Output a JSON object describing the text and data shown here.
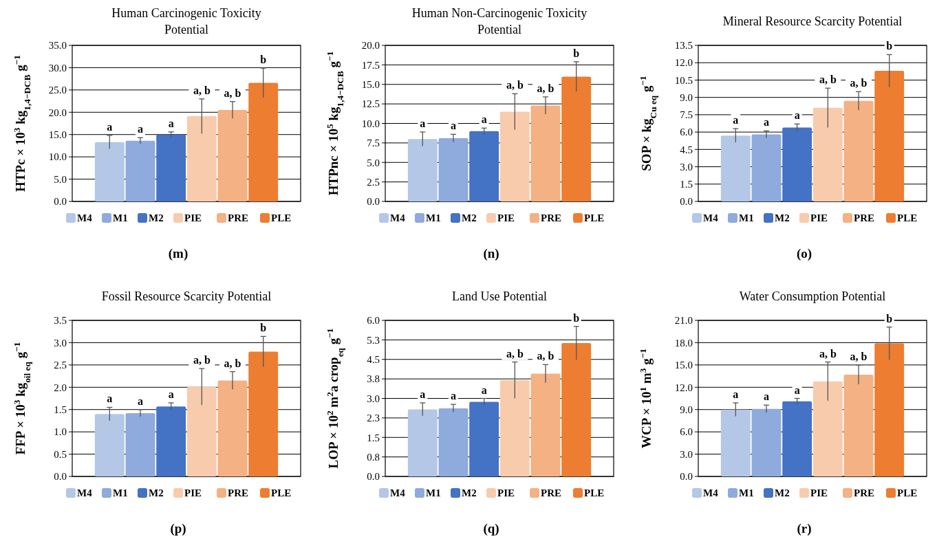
{
  "chart_data": [
    {
      "type": "bar",
      "title": "Human Carcinogenic Toxicity Potential",
      "ylabel": "HTPc × 10$^{3}$ kg$_{1,4−DCB}$ g$^{−1}$",
      "categories": [
        null
      ],
      "ylim": [
        0,
        35
      ],
      "yticks": [
        {
          "value": 0,
          "label": "0.0"
        },
        {
          "value": 5,
          "label": "5.0"
        },
        {
          "value": 10,
          "label": "10.0"
        },
        {
          "value": 15,
          "label": "15.0"
        },
        {
          "value": 20,
          "label": "20.0"
        },
        {
          "value": 25,
          "label": "25.0"
        },
        {
          "value": 30,
          "label": "30.0"
        },
        {
          "value": 35,
          "label": "35.0"
        }
      ],
      "grid": "y",
      "legend": "bottom",
      "series": [
        {
          "name": "M4",
          "color": "#b4c7e7",
          "values": [
            13.3
          ],
          "errors": [
            1.5
          ]
        },
        {
          "name": "M1",
          "color": "#8faadc",
          "values": [
            13.6
          ],
          "errors": [
            0.7
          ]
        },
        {
          "name": "M2",
          "color": "#4472c4",
          "values": [
            15.0
          ],
          "errors": [
            0.6
          ]
        },
        {
          "name": "PIE",
          "color": "#f8cbad",
          "values": [
            19.1
          ],
          "errors": [
            3.9
          ]
        },
        {
          "name": "PRE",
          "color": "#f4b183",
          "values": [
            20.5
          ],
          "errors": [
            1.9
          ]
        },
        {
          "name": "PLE",
          "color": "#ed7d31",
          "values": [
            26.6
          ],
          "errors": [
            3.3
          ]
        }
      ],
      "annotations": [
        {
          "text": "a",
          "y": 14.8
        },
        {
          "text": "a",
          "y": 14.3
        },
        {
          "text": "a",
          "y": 15.6
        },
        {
          "text": "a, b",
          "y": 23.0
        },
        {
          "text": "a, b",
          "y": 22.4
        },
        {
          "text": "b",
          "y": 29.9
        },
        "(m)"
      ]
    },
    {
      "type": "bar",
      "title": "Human Non-Carcinogenic Toxicity Potential",
      "ylabel": "HTPnc × 10$^{5}$ kg$_{1,4−DCB}$ g$^{−1}$",
      "categories": [
        null
      ],
      "ylim": [
        0,
        20
      ],
      "yticks": [
        {
          "value": 0,
          "label": "0.0"
        },
        {
          "value": 2.5,
          "label": "2.5"
        },
        {
          "value": 5,
          "label": "5.0"
        },
        {
          "value": 7.5,
          "label": "7.5"
        },
        {
          "value": 10,
          "label": "10.0"
        },
        {
          "value": 12.5,
          "label": "12.5"
        },
        {
          "value": 15,
          "label": "15.0"
        },
        {
          "value": 17.5,
          "label": "17.5"
        },
        {
          "value": 20,
          "label": "20.0"
        }
      ],
      "grid": "y",
      "legend": "bottom",
      "series": [
        {
          "name": "M4",
          "color": "#b4c7e7",
          "values": [
            8.0
          ],
          "errors": [
            0.9
          ]
        },
        {
          "name": "M1",
          "color": "#8faadc",
          "values": [
            8.1
          ],
          "errors": [
            0.5
          ]
        },
        {
          "name": "M2",
          "color": "#4472c4",
          "values": [
            9.0
          ],
          "errors": [
            0.4
          ]
        },
        {
          "name": "PIE",
          "color": "#f8cbad",
          "values": [
            11.5
          ],
          "errors": [
            2.3
          ]
        },
        {
          "name": "PRE",
          "color": "#f4b183",
          "values": [
            12.3
          ],
          "errors": [
            1.1
          ]
        },
        {
          "name": "PLE",
          "color": "#ed7d31",
          "values": [
            16.0
          ],
          "errors": [
            1.9
          ]
        }
      ],
      "annotations": [
        {
          "text": "a",
          "y": 8.9
        },
        {
          "text": "a",
          "y": 8.6
        },
        {
          "text": "a",
          "y": 9.4
        },
        {
          "text": "a, b",
          "y": 13.8
        },
        {
          "text": "a, b",
          "y": 13.4
        },
        {
          "text": "b",
          "y": 17.9
        },
        "(n)"
      ]
    },
    {
      "type": "bar",
      "title": "Mineral Resource Scarcity Potential",
      "ylabel": "SOP × kg$_{Cu eq}$ g$^{−1}$",
      "categories": [
        null
      ],
      "ylim": [
        0,
        13.5
      ],
      "yticks": [
        {
          "value": 0,
          "label": "0.0"
        },
        {
          "value": 1.5,
          "label": "1.5"
        },
        {
          "value": 3,
          "label": "3.0"
        },
        {
          "value": 4.5,
          "label": "4.5"
        },
        {
          "value": 6,
          "label": "6.0"
        },
        {
          "value": 7.5,
          "label": "7.5"
        },
        {
          "value": 9,
          "label": "9.0"
        },
        {
          "value": 10.5,
          "label": "10.5"
        },
        {
          "value": 12,
          "label": "12.0"
        },
        {
          "value": 13.5,
          "label": "13.5"
        }
      ],
      "grid": "y",
      "legend": "bottom",
      "series": [
        {
          "name": "M4",
          "color": "#b4c7e7",
          "values": [
            5.7
          ],
          "errors": [
            0.6
          ]
        },
        {
          "name": "M1",
          "color": "#8faadc",
          "values": [
            5.8
          ],
          "errors": [
            0.3
          ]
        },
        {
          "name": "M2",
          "color": "#4472c4",
          "values": [
            6.4
          ],
          "errors": [
            0.3
          ]
        },
        {
          "name": "PIE",
          "color": "#f8cbad",
          "values": [
            8.1
          ],
          "errors": [
            1.7
          ]
        },
        {
          "name": "PRE",
          "color": "#f4b183",
          "values": [
            8.7
          ],
          "errors": [
            0.8
          ]
        },
        {
          "name": "PLE",
          "color": "#ed7d31",
          "values": [
            11.3
          ],
          "errors": [
            1.4
          ]
        }
      ],
      "annotations": [
        {
          "text": "a",
          "y": 6.3
        },
        {
          "text": "a",
          "y": 6.1
        },
        {
          "text": "a",
          "y": 6.7
        },
        {
          "text": "a, b",
          "y": 9.8
        },
        {
          "text": "a, b",
          "y": 9.5
        },
        {
          "text": "b",
          "y": 12.7
        },
        "(o)"
      ]
    },
    {
      "type": "bar",
      "title": "Fossil Resource Scarcity Potential",
      "ylabel": "FFP × 10$^{3}$ kg$_{oil eq}$ g$^{−1}$",
      "categories": [
        null
      ],
      "ylim": [
        0,
        3.5
      ],
      "yticks": [
        {
          "value": 0,
          "label": "0.0"
        },
        {
          "value": 0.5,
          "label": "0.5"
        },
        {
          "value": 1,
          "label": "1.0"
        },
        {
          "value": 1.5,
          "label": "1.5"
        },
        {
          "value": 2,
          "label": "2.0"
        },
        {
          "value": 2.5,
          "label": "2.5"
        },
        {
          "value": 3,
          "label": "3.0"
        },
        {
          "value": 3.5,
          "label": "3.5"
        }
      ],
      "grid": "y",
      "legend": "bottom",
      "series": [
        {
          "name": "M4",
          "color": "#b4c7e7",
          "values": [
            1.4
          ],
          "errors": [
            0.15
          ]
        },
        {
          "name": "M1",
          "color": "#8faadc",
          "values": [
            1.42
          ],
          "errors": [
            0.08
          ]
        },
        {
          "name": "M2",
          "color": "#4472c4",
          "values": [
            1.57
          ],
          "errors": [
            0.08
          ]
        },
        {
          "name": "PIE",
          "color": "#f8cbad",
          "values": [
            2.01
          ],
          "errors": [
            0.41
          ]
        },
        {
          "name": "PRE",
          "color": "#f4b183",
          "values": [
            2.15
          ],
          "errors": [
            0.2
          ]
        },
        {
          "name": "PLE",
          "color": "#ed7d31",
          "values": [
            2.8
          ],
          "errors": [
            0.34
          ]
        }
      ],
      "annotations": [
        {
          "text": "a",
          "y": 1.55
        },
        {
          "text": "a",
          "y": 1.5
        },
        {
          "text": "a",
          "y": 1.65
        },
        {
          "text": "a, b",
          "y": 2.42
        },
        {
          "text": "a, b",
          "y": 2.35
        },
        {
          "text": "b",
          "y": 3.14
        },
        "(p)"
      ]
    },
    {
      "type": "bar",
      "title": "Land Use Potential",
      "ylabel": "LOP × 10$^{2}$ m$^{2}$a crop$_{eq}$ g$^{−1}$",
      "categories": [
        null
      ],
      "ylim": [
        0,
        6
      ],
      "yticks": [
        {
          "value": 0,
          "label": "0.0"
        },
        {
          "value": 0.75,
          "label": "0.8"
        },
        {
          "value": 1.5,
          "label": "1.5"
        },
        {
          "value": 2.25,
          "label": "2.3"
        },
        {
          "value": 3,
          "label": "3.0"
        },
        {
          "value": 3.75,
          "label": "3.8"
        },
        {
          "value": 4.5,
          "label": "4.5"
        },
        {
          "value": 5.25,
          "label": "5.3"
        },
        {
          "value": 6,
          "label": "6.0"
        }
      ],
      "grid": "y",
      "legend": "bottom",
      "series": [
        {
          "name": "M4",
          "color": "#b4c7e7",
          "values": [
            2.58
          ],
          "errors": [
            0.25
          ]
        },
        {
          "name": "M1",
          "color": "#8faadc",
          "values": [
            2.62
          ],
          "errors": [
            0.15
          ]
        },
        {
          "name": "M2",
          "color": "#4472c4",
          "values": [
            2.87
          ],
          "errors": [
            0.13
          ]
        },
        {
          "name": "PIE",
          "color": "#f8cbad",
          "values": [
            3.7
          ],
          "errors": [
            0.7
          ]
        },
        {
          "name": "PRE",
          "color": "#f4b183",
          "values": [
            3.95
          ],
          "errors": [
            0.35
          ]
        },
        {
          "name": "PLE",
          "color": "#ed7d31",
          "values": [
            5.13
          ],
          "errors": [
            0.64
          ]
        }
      ],
      "annotations": [
        {
          "text": "a",
          "y": 2.83
        },
        {
          "text": "a",
          "y": 2.77
        },
        {
          "text": "a",
          "y": 3.0
        },
        {
          "text": "a, b",
          "y": 4.4
        },
        {
          "text": "a, b",
          "y": 4.3
        },
        {
          "text": "b",
          "y": 5.77
        },
        "(q)"
      ]
    },
    {
      "type": "bar",
      "title": "Water Consumption Potential",
      "ylabel": "WCP × 10$^{1}$ m$^{3}$ g$^{−1}$",
      "categories": [
        null
      ],
      "ylim": [
        0,
        21
      ],
      "yticks": [
        {
          "value": 0,
          "label": "0.0"
        },
        {
          "value": 3,
          "label": "3.0"
        },
        {
          "value": 6,
          "label": "6.0"
        },
        {
          "value": 9,
          "label": "9.0"
        },
        {
          "value": 12,
          "label": "12.0"
        },
        {
          "value": 15,
          "label": "15.0"
        },
        {
          "value": 18,
          "label": "18.0"
        },
        {
          "value": 21,
          "label": "21.0"
        }
      ],
      "grid": "y",
      "legend": "bottom",
      "series": [
        {
          "name": "M4",
          "color": "#b4c7e7",
          "values": [
            9.0
          ],
          "errors": [
            0.9
          ]
        },
        {
          "name": "M1",
          "color": "#8faadc",
          "values": [
            9.1
          ],
          "errors": [
            0.5
          ]
        },
        {
          "name": "M2",
          "color": "#4472c4",
          "values": [
            10.1
          ],
          "errors": [
            0.4
          ]
        },
        {
          "name": "PIE",
          "color": "#f8cbad",
          "values": [
            12.8
          ],
          "errors": [
            2.6
          ]
        },
        {
          "name": "PRE",
          "color": "#f4b183",
          "values": [
            13.7
          ],
          "errors": [
            1.3
          ]
        },
        {
          "name": "PLE",
          "color": "#ed7d31",
          "values": [
            17.9
          ],
          "errors": [
            2.2
          ]
        }
      ],
      "annotations": [
        {
          "text": "a",
          "y": 9.9
        },
        {
          "text": "a",
          "y": 9.6
        },
        {
          "text": "a",
          "y": 10.5
        },
        {
          "text": "a, b",
          "y": 15.4
        },
        {
          "text": "a, b",
          "y": 15.0
        },
        {
          "text": "b",
          "y": 20.1
        },
        "(r)"
      ]
    }
  ]
}
